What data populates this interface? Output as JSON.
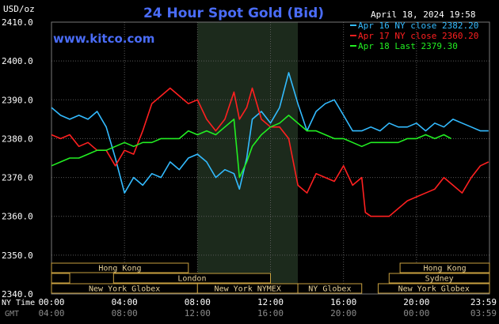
{
  "header": {
    "unit": "USD/oz",
    "title": "24 Hour Spot Gold (Bid)",
    "date": "April 18, 2024 19:58",
    "brand": "www.kitco.com"
  },
  "colors": {
    "background": "#000000",
    "grid": "#5a5a5a",
    "axis_text": "#ffffff",
    "title": "#4a6cf7",
    "brand": "#4a6cf7",
    "session_fill": "#1c2a1c",
    "session_border": "#c8a040",
    "session_text": "#e8d29a",
    "gmt_text": "#8a8a8a",
    "series1": "#33bbff",
    "series2": "#ff2020",
    "series3": "#22ee22"
  },
  "chart_data": {
    "type": "line",
    "title": "24 Hour Spot Gold (Bid)",
    "ylabel": "USD/oz",
    "ylim": [
      2340,
      2410
    ],
    "xlim_hours": [
      0,
      24
    ],
    "grid": true,
    "legend_placement": "top-right",
    "y_ticks": [
      "2410.0",
      "2400.0",
      "2390.0",
      "2380.0",
      "2370.0",
      "2360.0",
      "2350.0",
      "2340.0"
    ],
    "x_ticks_ny": [
      "00:00",
      "04:00",
      "08:00",
      "12:00",
      "16:00",
      "20:00",
      "23:59"
    ],
    "x_ticks_gmt": [
      "04:00",
      "08:00",
      "12:00",
      "16:00",
      "20:00",
      "00:00",
      "03:59"
    ],
    "x_label_ny": "NY Time",
    "x_label_gmt": "GMT",
    "series": [
      {
        "name": "Apr 16 NY close 2382.20",
        "color": "#33bbff",
        "x": [
          0,
          0.5,
          1,
          1.5,
          2,
          2.5,
          3,
          3.5,
          4,
          4.5,
          5,
          5.5,
          6,
          6.5,
          7,
          7.5,
          8,
          8.5,
          9,
          9.5,
          10,
          10.3,
          10.7,
          11,
          11.5,
          12,
          12.5,
          13,
          13.5,
          14,
          14.5,
          15,
          15.5,
          16,
          16.5,
          17,
          17.5,
          18,
          18.5,
          19,
          19.5,
          20,
          20.5,
          21,
          21.5,
          22,
          22.5,
          23,
          23.5,
          23.95
        ],
        "y": [
          2388,
          2386,
          2385,
          2386,
          2385,
          2387,
          2383,
          2375,
          2366,
          2370,
          2368,
          2371,
          2370,
          2374,
          2372,
          2375,
          2376,
          2374,
          2370,
          2372,
          2371,
          2367,
          2375,
          2385,
          2387,
          2384,
          2388,
          2397,
          2389,
          2382,
          2387,
          2389,
          2390,
          2386,
          2382,
          2382,
          2383,
          2382,
          2384,
          2383,
          2383,
          2384,
          2382,
          2384,
          2383,
          2385,
          2384,
          2383,
          2382,
          2382
        ]
      },
      {
        "name": "Apr 17 NY close 2360.20",
        "color": "#ff2020",
        "x": [
          0,
          0.5,
          1,
          1.5,
          2,
          2.5,
          3,
          3.5,
          4,
          4.5,
          5,
          5.5,
          6,
          6.5,
          7,
          7.5,
          8,
          8.5,
          9,
          9.5,
          10,
          10.3,
          10.7,
          11,
          11.5,
          12,
          12.5,
          13,
          13.5,
          14,
          14.5,
          15,
          15.5,
          16,
          16.5,
          17,
          17.2,
          17.5,
          18,
          18.5,
          19,
          19.5,
          20,
          20.5,
          21,
          21.5,
          22,
          22.5,
          23,
          23.5,
          23.95
        ],
        "y": [
          2381,
          2380,
          2381,
          2378,
          2379,
          2377,
          2377,
          2373,
          2377,
          2376,
          2382,
          2389,
          2391,
          2393,
          2391,
          2389,
          2390,
          2385,
          2382,
          2385,
          2392,
          2385,
          2388,
          2393,
          2385,
          2383,
          2383,
          2380,
          2368,
          2366,
          2371,
          2370,
          2369,
          2373,
          2368,
          2370,
          2361,
          2360,
          2360,
          2360,
          2362,
          2364,
          2365,
          2366,
          2367,
          2370,
          2368,
          2366,
          2370,
          2373,
          2374
        ]
      },
      {
        "name": "Apr 18 Last 2379.30",
        "color": "#22ee22",
        "x": [
          0,
          0.5,
          1,
          1.5,
          2,
          2.5,
          3,
          3.5,
          4,
          4.5,
          5,
          5.5,
          6,
          6.5,
          7,
          7.5,
          8,
          8.5,
          9,
          9.5,
          10,
          10.3,
          10.7,
          11,
          11.5,
          12,
          12.5,
          13,
          13.5,
          14,
          14.5,
          15,
          15.5,
          16,
          16.5,
          17,
          17.5,
          18,
          18.5,
          19,
          19.5,
          20,
          20.5,
          21,
          21.5,
          21.9
        ],
        "y": [
          2373,
          2374,
          2375,
          2375,
          2376,
          2377,
          2377,
          2378,
          2379,
          2378,
          2379,
          2379,
          2380,
          2380,
          2380,
          2382,
          2381,
          2382,
          2381,
          2383,
          2385,
          2370,
          2374,
          2378,
          2381,
          2383,
          2384,
          2386,
          2384,
          2382,
          2382,
          2381,
          2380,
          2380,
          2379,
          2378,
          2379,
          2379,
          2379,
          2379,
          2380,
          2380,
          2381,
          2380,
          2381,
          2380
        ]
      }
    ],
    "sessions": [
      {
        "label": "Hong Kong",
        "start": 0,
        "end": 7.5,
        "row": 0
      },
      {
        "label": "Hong Kong",
        "start": 19.1,
        "end": 24,
        "row": 0
      },
      {
        "label": "London",
        "start": 3.4,
        "end": 12,
        "row": 1
      },
      {
        "label": "",
        "start": 0,
        "end": 1.0,
        "row": 1
      },
      {
        "label": "Sydney",
        "start": 18.5,
        "end": 24,
        "row": 1
      },
      {
        "label": "New York Globex",
        "start": 0,
        "end": 8.0,
        "row": 2
      },
      {
        "label": "New York NYMEX",
        "start": 8.0,
        "end": 13.5,
        "row": 2
      },
      {
        "label": "NY Globex",
        "start": 13.5,
        "end": 17.0,
        "row": 2
      },
      {
        "label": "New York Globex",
        "start": 17.9,
        "end": 24,
        "row": 2
      }
    ]
  }
}
